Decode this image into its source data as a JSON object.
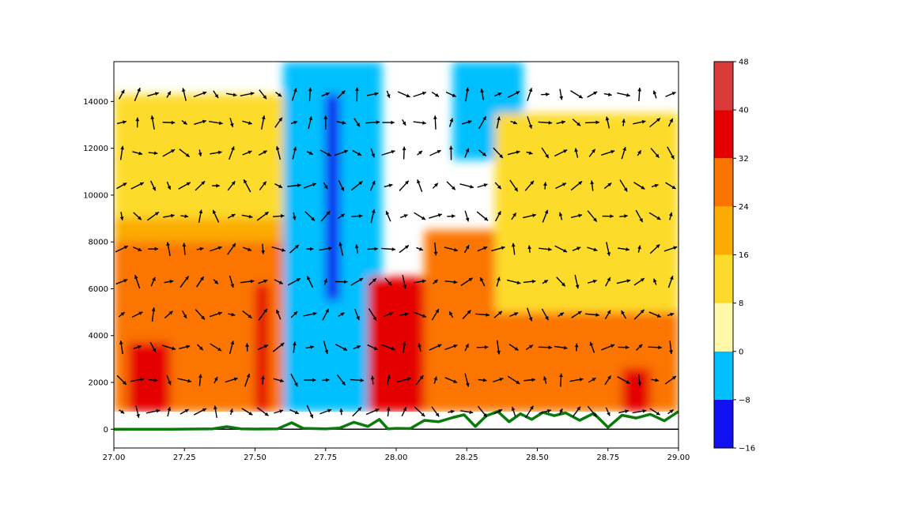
{
  "chart_data": {
    "type": "heatmap",
    "subtype": "filled-contour with wind vectors and terrain line",
    "title": "",
    "xlabel": "",
    "ylabel": "",
    "xlim": [
      27.0,
      29.0
    ],
    "ylim": [
      -800,
      15700
    ],
    "x_ticks": [
      27.0,
      27.25,
      27.5,
      27.75,
      28.0,
      28.25,
      28.5,
      28.75,
      29.0
    ],
    "x_tick_labels": [
      "27.00",
      "27.25",
      "27.50",
      "27.75",
      "28.00",
      "28.25",
      "28.50",
      "28.75",
      "29.00"
    ],
    "y_ticks": [
      0,
      2000,
      4000,
      6000,
      8000,
      10000,
      12000,
      14000
    ],
    "y_tick_labels": [
      "0",
      "2000",
      "4000",
      "6000",
      "8000",
      "10000",
      "12000",
      "14000"
    ],
    "grid": false,
    "colorbar": {
      "position": "right",
      "levels": [
        -16,
        -8,
        0,
        8,
        16,
        24,
        32,
        40,
        48
      ],
      "level_labels": [
        "−16",
        "−8",
        "0",
        "8",
        "16",
        "24",
        "32",
        "40",
        "48"
      ],
      "colors": [
        "#1010f0",
        "#00bfff",
        "#fff8a8",
        "#fddb2b",
        "#fbac00",
        "#fb7400",
        "#e50000",
        "#da3a3a"
      ]
    },
    "terrain_line": {
      "color": "#0a7a0a",
      "x": [
        27.0,
        27.2,
        27.35,
        27.4,
        27.45,
        27.5,
        27.58,
        27.63,
        27.67,
        27.75,
        27.8,
        27.85,
        27.9,
        27.94,
        27.97,
        28.0,
        28.05,
        28.1,
        28.15,
        28.2,
        28.24,
        28.28,
        28.32,
        28.36,
        28.4,
        28.44,
        28.48,
        28.52,
        28.56,
        28.6,
        28.65,
        28.7,
        28.75,
        28.8,
        28.85,
        28.9,
        28.95,
        29.0
      ],
      "y": [
        0,
        0,
        20,
        110,
        20,
        10,
        20,
        280,
        40,
        20,
        50,
        300,
        120,
        420,
        20,
        40,
        30,
        380,
        320,
        500,
        620,
        120,
        580,
        760,
        320,
        660,
        420,
        720,
        580,
        700,
        380,
        680,
        80,
        600,
        480,
        640,
        360,
        760
      ]
    },
    "zero_line": {
      "y": 0,
      "color": "#000000"
    },
    "data_floor_height": 750,
    "vector_levels": [
      750,
      2100,
      3500,
      4900,
      6300,
      7700,
      9100,
      10400,
      11800,
      13100,
      14300
    ],
    "field_regions": [
      {
        "value_band": "0 to 8",
        "x": [
          27.0,
          27.45
        ],
        "y": [
          9000,
          13500
        ]
      },
      {
        "value_band": "8 to 16",
        "x": [
          27.0,
          27.6
        ],
        "y": [
          5800,
          14300
        ]
      },
      {
        "value_band": "16 to 24",
        "x": [
          27.0,
          27.65
        ],
        "y": [
          750,
          9000
        ]
      },
      {
        "value_band": "24 to 32",
        "x": [
          27.0,
          27.6
        ],
        "y": [
          750,
          8000
        ]
      },
      {
        "value_band": "32 to 40",
        "x": [
          27.05,
          27.2
        ],
        "y": [
          750,
          3700
        ]
      },
      {
        "value_band": "32 to 40",
        "x": [
          27.5,
          27.55
        ],
        "y": [
          750,
          6200
        ]
      },
      {
        "value_band": "-8 to 0",
        "x": [
          27.6,
          27.95
        ],
        "y": [
          750,
          15700
        ]
      },
      {
        "value_band": "-16 to -8",
        "x": [
          27.75,
          27.8
        ],
        "y": [
          5500,
          14300
        ]
      },
      {
        "value_band": "32 to 40",
        "x": [
          27.9,
          28.7
        ],
        "y": [
          750,
          6500
        ]
      },
      {
        "value_band": "40 to 48",
        "x": [
          28.2,
          28.5
        ],
        "y": [
          750,
          6000
        ]
      },
      {
        "value_band": "-8 to 0",
        "x": [
          28.2,
          28.45
        ],
        "y": [
          11500,
          15700
        ]
      },
      {
        "value_band": "24 to 32",
        "x": [
          28.1,
          29.0
        ],
        "y": [
          750,
          8500
        ]
      },
      {
        "value_band": "8 to 16",
        "x": [
          28.35,
          29.0
        ],
        "y": [
          5000,
          13500
        ]
      },
      {
        "value_band": "32 to 40",
        "x": [
          28.8,
          28.9
        ],
        "y": [
          750,
          2600
        ]
      }
    ]
  }
}
